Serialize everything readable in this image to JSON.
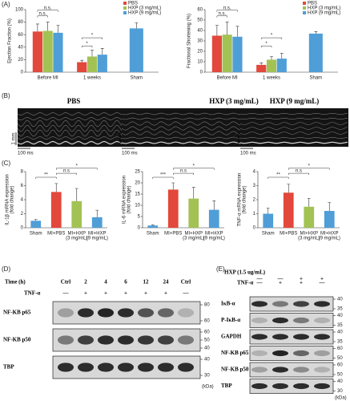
{
  "panel_labels": [
    "(A)",
    "(B)",
    "(C)",
    "(D)",
    "(E)"
  ],
  "chart_data": [
    {
      "type": "grouped_bar",
      "y_label": [
        "Ejection Fraction (%)"
      ],
      "categories": [
        "Before MI",
        "1 weeks"
      ],
      "series": [
        {
          "name": "PBS",
          "color": "#e2483b",
          "values": [
            65,
            16
          ],
          "errors": [
            12,
            3
          ]
        },
        {
          "name": "HXP (3 mg/mL)",
          "color": "#a3c254",
          "values": [
            66,
            25
          ],
          "errors": [
            14,
            10
          ]
        },
        {
          "name": "HXP (9 mg/mL)",
          "color": "#4f9ed8",
          "values": [
            63,
            28
          ],
          "errors": [
            12,
            10
          ]
        }
      ],
      "sham": {
        "label": "Sham",
        "value": 70,
        "error": 9,
        "color": "#4f9ed8"
      },
      "ylim": [
        0,
        100
      ],
      "yticks": [
        0,
        20,
        40,
        60,
        80,
        100
      ],
      "annotations": [
        "n.s.",
        "n.s.",
        "*",
        "*"
      ]
    },
    {
      "type": "grouped_bar",
      "y_label": [
        "Fractional Shortening (%)"
      ],
      "categories": [
        "Before MI",
        "1 weeks"
      ],
      "series": [
        {
          "name": "PBS",
          "color": "#e2483b",
          "values": [
            35,
            7
          ],
          "errors": [
            10,
            2
          ]
        },
        {
          "name": "HXP (3 mg/mL)",
          "color": "#a3c254",
          "values": [
            36,
            12
          ],
          "errors": [
            12,
            3
          ]
        },
        {
          "name": "HXP (9 mg/mL)",
          "color": "#4f9ed8",
          "values": [
            34,
            13
          ],
          "errors": [
            10,
            5
          ]
        }
      ],
      "sham": {
        "label": "Sham",
        "value": 37,
        "error": 2,
        "color": "#4f9ed8"
      },
      "ylim": [
        0,
        60
      ],
      "yticks": [
        0,
        10,
        20,
        30,
        40,
        50,
        60
      ],
      "annotations": [
        "n.s.",
        "n.s.",
        "*",
        "*"
      ]
    },
    {
      "type": "bar",
      "y_label": [
        "IL-1β mRNA expression",
        "(fold change)"
      ],
      "categories": [
        [
          "Sham"
        ],
        [
          "MI+PBS"
        ],
        [
          "MI+HXP",
          "(3 mg/mL)"
        ],
        [
          "MI+HXP",
          "(9 mg/mL)"
        ]
      ],
      "values": [
        1.0,
        5.1,
        3.8,
        1.5
      ],
      "errors": [
        0.2,
        1.2,
        1.8,
        1.0
      ],
      "colors": [
        "#4f9ed8",
        "#e2483b",
        "#a3c254",
        "#4f9ed8"
      ],
      "ylim": [
        0,
        8
      ],
      "yticks": [
        0,
        2,
        4,
        6,
        8
      ],
      "annotations": [
        "**",
        "n.s",
        "*"
      ]
    },
    {
      "type": "bar",
      "y_label": [
        "IL-6 mRNA expression",
        "(fold change)"
      ],
      "categories": [
        [
          "Sham"
        ],
        [
          "MI+PBS"
        ],
        [
          "MI+HXP",
          "(3 mg/mL)"
        ],
        [
          "MI+HXP",
          "(9 mg/mL)"
        ]
      ],
      "values": [
        1,
        17,
        13,
        8
      ],
      "errors": [
        0.3,
        3,
        5,
        4
      ],
      "colors": [
        "#4f9ed8",
        "#e2483b",
        "#a3c254",
        "#4f9ed8"
      ],
      "ylim": [
        0,
        25
      ],
      "yticks": [
        0,
        5,
        10,
        15,
        20,
        25
      ],
      "annotations": [
        "***",
        "n.s",
        "*"
      ]
    },
    {
      "type": "bar",
      "y_label": [
        "TNF-α mRNA expression",
        "(fold change)"
      ],
      "categories": [
        [
          "Sham"
        ],
        [
          "MI+PBS"
        ],
        [
          "MI+HXP",
          "(3 mg/mL)"
        ],
        [
          "MI+HXP",
          "(9 mg/mL)"
        ]
      ],
      "values": [
        1.0,
        2.5,
        1.5,
        1.2
      ],
      "errors": [
        0.4,
        0.6,
        0.6,
        0.6
      ],
      "colors": [
        "#4f9ed8",
        "#e2483b",
        "#a3c254",
        "#4f9ed8"
      ],
      "ylim": [
        0,
        4
      ],
      "yticks": [
        0,
        1,
        2,
        3,
        4
      ],
      "annotations": [
        "**",
        "n.s",
        "*"
      ]
    }
  ],
  "echo": {
    "panels": [
      "PBS",
      "HXP (3 mg/mL)",
      "HXP (9 mg/mL)"
    ],
    "scale_y": "1 mm",
    "scale_x": "100 ms"
  },
  "blot_d": {
    "time_label": "Time (h)",
    "lanes": [
      "Ctrl",
      "2",
      "4",
      "6",
      "12",
      "24",
      "Ctrl"
    ],
    "treatment_label": "TNF-α",
    "treatment": [
      "—",
      "+",
      "+",
      "+",
      "+",
      "+",
      "—"
    ],
    "rows": [
      {
        "label": "NF-KB p65",
        "markers": [
          80,
          60
        ]
      },
      {
        "label": "NF-KB p50",
        "markers": [
          60,
          50,
          40
        ]
      },
      {
        "label": "TBP",
        "markers": [
          40,
          30
        ]
      }
    ],
    "unit": "(kDa)"
  },
  "blot_e": {
    "rows_top": [
      {
        "label": "HXP (1.5 ug/mL)",
        "values": [
          "—",
          "—",
          "+",
          "+"
        ]
      },
      {
        "label": "TNF-α",
        "values": [
          "—",
          "+",
          "+",
          "—"
        ]
      }
    ],
    "blots": [
      {
        "label": "IκB-α",
        "markers": [
          40,
          35
        ]
      },
      {
        "label": "P-IκB-α",
        "markers": [
          40,
          35
        ]
      },
      {
        "label": "GAPDH",
        "markers": [
          40,
          35
        ]
      },
      {
        "label": "NF-KB p65",
        "markers": [
          60,
          50
        ]
      },
      {
        "label": "NF-KB p50",
        "markers": [
          60,
          50
        ]
      },
      {
        "label": "TBP",
        "markers": [
          40,
          30
        ]
      }
    ],
    "unit": "(kDa)"
  }
}
